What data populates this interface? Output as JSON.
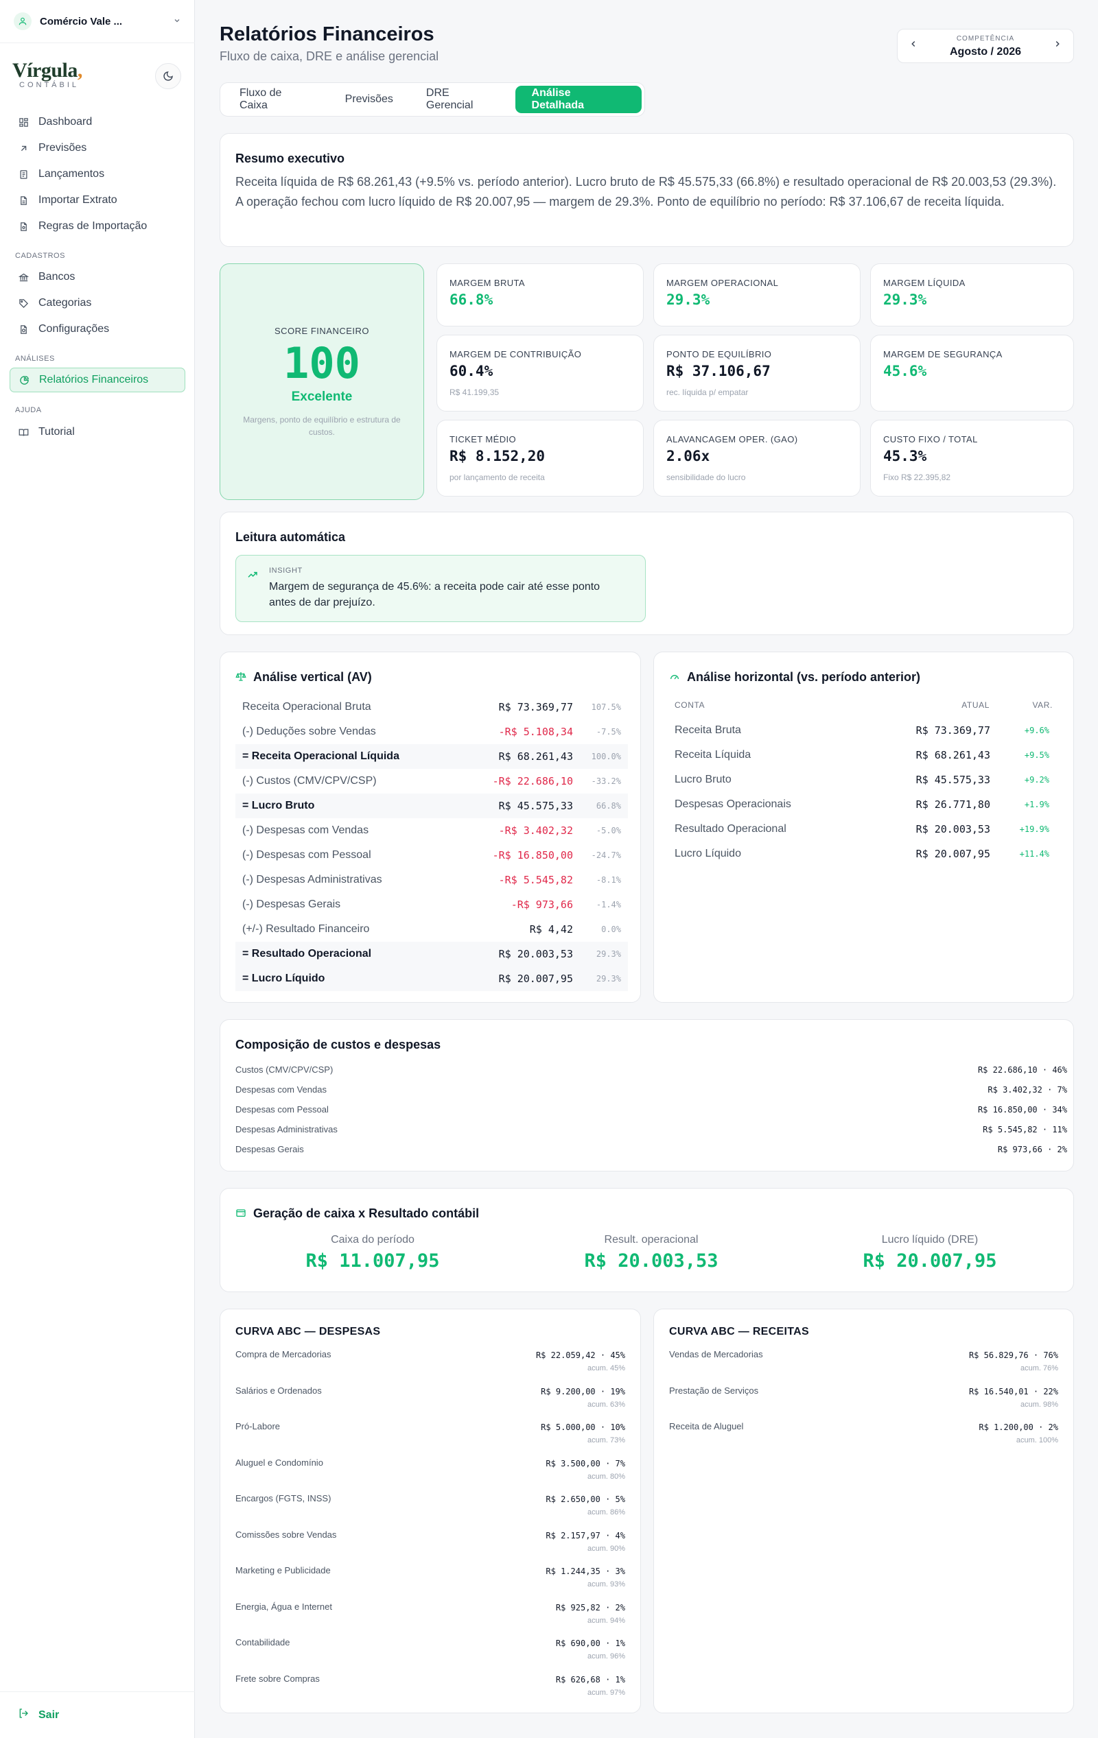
{
  "sidebar": {
    "company": "Comércio Vale ...",
    "logo_word": "Vírgula",
    "logo_comma": ",",
    "logo_sub": "CONTÁBIL",
    "sections": {
      "cadastros": "CADASTROS",
      "analises": "ANÁLISES",
      "ajuda": "AJUDA"
    },
    "items": [
      {
        "label": "Dashboard",
        "icon": "dashboard-icon"
      },
      {
        "label": "Previsões",
        "icon": "arrow-up-right-icon"
      },
      {
        "label": "Lançamentos",
        "icon": "receipt-icon"
      },
      {
        "label": "Importar Extrato",
        "icon": "file-icon"
      },
      {
        "label": "Regras de Importação",
        "icon": "file-settings-icon"
      },
      {
        "label": "Bancos",
        "icon": "bank-icon"
      },
      {
        "label": "Categorias",
        "icon": "tag-icon"
      },
      {
        "label": "Configurações",
        "icon": "file-gear-icon"
      },
      {
        "label": "Relatórios Financeiros",
        "icon": "pie-chart-icon",
        "active": true
      },
      {
        "label": "Tutorial",
        "icon": "book-icon"
      }
    ],
    "logout": "Sair"
  },
  "header": {
    "title": "Relatórios Financeiros",
    "subtitle": "Fluxo de caixa, DRE e análise gerencial",
    "competencia_label": "COMPETÊNCIA",
    "competencia_value": "Agosto / 2026"
  },
  "tabs": [
    {
      "label": "Fluxo de Caixa"
    },
    {
      "label": "Previsões"
    },
    {
      "label": "DRE Gerencial"
    },
    {
      "label": "Análise Detalhada",
      "active": true
    }
  ],
  "summary": {
    "title": "Resumo executivo",
    "text": "Receita líquida de R$ 68.261,43 (+9.5% vs. período anterior). Lucro bruto de R$ 45.575,33 (66.8%) e resultado operacional de R$ 20.003,53 (29.3%). A operação fechou com lucro líquido de R$ 20.007,95 — margem de 29.3%. Ponto de equilíbrio no período: R$ 37.106,67 de receita líquida."
  },
  "score": {
    "label": "SCORE FINANCEIRO",
    "value": "100",
    "rating": "Excelente",
    "desc": "Margens, ponto de equilíbrio e estrutura de custos."
  },
  "kpis": [
    {
      "label": "MARGEM BRUTA",
      "value": "66.8%",
      "sub": "",
      "tone": "green"
    },
    {
      "label": "MARGEM OPERACIONAL",
      "value": "29.3%",
      "sub": "",
      "tone": "green"
    },
    {
      "label": "MARGEM LÍQUIDA",
      "value": "29.3%",
      "sub": "",
      "tone": "green"
    },
    {
      "label": "MARGEM DE CONTRIBUIÇÃO",
      "value": "60.4%",
      "sub": "R$ 41.199,35",
      "tone": "dark"
    },
    {
      "label": "PONTO DE EQUILÍBRIO",
      "value": "R$ 37.106,67",
      "sub": "rec. líquida p/ empatar",
      "tone": "dark"
    },
    {
      "label": "MARGEM DE SEGURANÇA",
      "value": "45.6%",
      "sub": "",
      "tone": "green"
    },
    {
      "label": "TICKET MÉDIO",
      "value": "R$ 8.152,20",
      "sub": "por lançamento de receita",
      "tone": "dark"
    },
    {
      "label": "ALAVANCAGEM OPER. (GAO)",
      "value": "2.06x",
      "sub": "sensibilidade do lucro",
      "tone": "dark"
    },
    {
      "label": "CUSTO FIXO / TOTAL",
      "value": "45.3%",
      "sub": "Fixo R$ 22.395,82",
      "tone": "dark"
    }
  ],
  "leitura": {
    "title": "Leitura automática",
    "insight_label": "INSIGHT",
    "insight_text": "Margem de segurança de 45.6%: a receita pode cair até esse ponto antes de dar prejuízo."
  },
  "av": {
    "title": "Análise vertical (AV)",
    "rows": [
      {
        "label": "Receita Operacional Bruta",
        "value": "R$ 73.369,77",
        "pct": "107.5%",
        "bold": false,
        "neg": false
      },
      {
        "label": "(-) Deduções sobre Vendas",
        "value": "-R$ 5.108,34",
        "pct": "-7.5%",
        "bold": false,
        "neg": true
      },
      {
        "label": "= Receita Operacional Líquida",
        "value": "R$ 68.261,43",
        "pct": "100.0%",
        "bold": true,
        "neg": false
      },
      {
        "label": "(-) Custos (CMV/CPV/CSP)",
        "value": "-R$ 22.686,10",
        "pct": "-33.2%",
        "bold": false,
        "neg": true
      },
      {
        "label": "= Lucro Bruto",
        "value": "R$ 45.575,33",
        "pct": "66.8%",
        "bold": true,
        "neg": false
      },
      {
        "label": "(-) Despesas com Vendas",
        "value": "-R$ 3.402,32",
        "pct": "-5.0%",
        "bold": false,
        "neg": true
      },
      {
        "label": "(-) Despesas com Pessoal",
        "value": "-R$ 16.850,00",
        "pct": "-24.7%",
        "bold": false,
        "neg": true
      },
      {
        "label": "(-) Despesas Administrativas",
        "value": "-R$ 5.545,82",
        "pct": "-8.1%",
        "bold": false,
        "neg": true
      },
      {
        "label": "(-) Despesas Gerais",
        "value": "-R$ 973,66",
        "pct": "-1.4%",
        "bold": false,
        "neg": true
      },
      {
        "label": "(+/-) Resultado Financeiro",
        "value": "R$ 4,42",
        "pct": "0.0%",
        "bold": false,
        "neg": false
      },
      {
        "label": "= Resultado Operacional",
        "value": "R$ 20.003,53",
        "pct": "29.3%",
        "bold": true,
        "neg": false
      },
      {
        "label": "= Lucro Líquido",
        "value": "R$ 20.007,95",
        "pct": "29.3%",
        "bold": true,
        "neg": false
      }
    ]
  },
  "ah": {
    "title": "Análise horizontal (vs. período anterior)",
    "col_conta": "CONTA",
    "col_atual": "ATUAL",
    "col_var": "VAR.",
    "rows": [
      {
        "label": "Receita Bruta",
        "value": "R$ 73.369,77",
        "var": "+9.6%"
      },
      {
        "label": "Receita Líquida",
        "value": "R$ 68.261,43",
        "var": "+9.5%"
      },
      {
        "label": "Lucro Bruto",
        "value": "R$ 45.575,33",
        "var": "+9.2%"
      },
      {
        "label": "Despesas Operacionais",
        "value": "R$ 26.771,80",
        "var": "+1.9%"
      },
      {
        "label": "Resultado Operacional",
        "value": "R$ 20.003,53",
        "var": "+19.9%"
      },
      {
        "label": "Lucro Líquido",
        "value": "R$ 20.007,95",
        "var": "+11.4%"
      }
    ]
  },
  "composicao": {
    "title": "Composição de custos e despesas",
    "rows": [
      {
        "label": "Custos (CMV/CPV/CSP)",
        "value": "R$ 22.686,10 · 46%"
      },
      {
        "label": "Despesas com Vendas",
        "value": "R$ 3.402,32 · 7%"
      },
      {
        "label": "Despesas com Pessoal",
        "value": "R$ 16.850,00 · 34%"
      },
      {
        "label": "Despesas Administrativas",
        "value": "R$ 5.545,82 · 11%"
      },
      {
        "label": "Despesas Gerais",
        "value": "R$ 973,66 · 2%"
      }
    ]
  },
  "caixa": {
    "title": "Geração de caixa x Resultado contábil",
    "cols": [
      {
        "label": "Caixa do período",
        "value": "R$ 11.007,95"
      },
      {
        "label": "Result. operacional",
        "value": "R$ 20.003,53"
      },
      {
        "label": "Lucro líquido (DRE)",
        "value": "R$ 20.007,95"
      }
    ]
  },
  "abc_despesas": {
    "title": "CURVA ABC — DESPESAS",
    "rows": [
      {
        "label": "Compra de Mercadorias",
        "value": "R$ 22.059,42 · 45%",
        "acum": "acum. 45%"
      },
      {
        "label": "Salários e Ordenados",
        "value": "R$ 9.200,00 · 19%",
        "acum": "acum. 63%"
      },
      {
        "label": "Pró-Labore",
        "value": "R$ 5.000,00 · 10%",
        "acum": "acum. 73%"
      },
      {
        "label": "Aluguel e Condomínio",
        "value": "R$ 3.500,00 · 7%",
        "acum": "acum. 80%"
      },
      {
        "label": "Encargos (FGTS, INSS)",
        "value": "R$ 2.650,00 · 5%",
        "acum": "acum. 86%"
      },
      {
        "label": "Comissões sobre Vendas",
        "value": "R$ 2.157,97 · 4%",
        "acum": "acum. 90%"
      },
      {
        "label": "Marketing e Publicidade",
        "value": "R$ 1.244,35 · 3%",
        "acum": "acum. 93%"
      },
      {
        "label": "Energia, Água e Internet",
        "value": "R$ 925,82 · 2%",
        "acum": "acum. 94%"
      },
      {
        "label": "Contabilidade",
        "value": "R$ 690,00 · 1%",
        "acum": "acum. 96%"
      },
      {
        "label": "Frete sobre Compras",
        "value": "R$ 626,68 · 1%",
        "acum": "acum. 97%"
      }
    ]
  },
  "abc_receitas": {
    "title": "CURVA ABC — RECEITAS",
    "rows": [
      {
        "label": "Vendas de Mercadorias",
        "value": "R$ 56.829,76 · 76%",
        "acum": "acum. 76%"
      },
      {
        "label": "Prestação de Serviços",
        "value": "R$ 16.540,01 · 22%",
        "acum": "acum. 98%"
      },
      {
        "label": "Receita de Aluguel",
        "value": "R$ 1.200,00 · 2%",
        "acum": "acum. 100%"
      }
    ]
  },
  "colors": {
    "accent": "#10b973",
    "negative": "#e0284a",
    "brand": "#1f3d2b",
    "brand_comma": "#e08a2c"
  }
}
